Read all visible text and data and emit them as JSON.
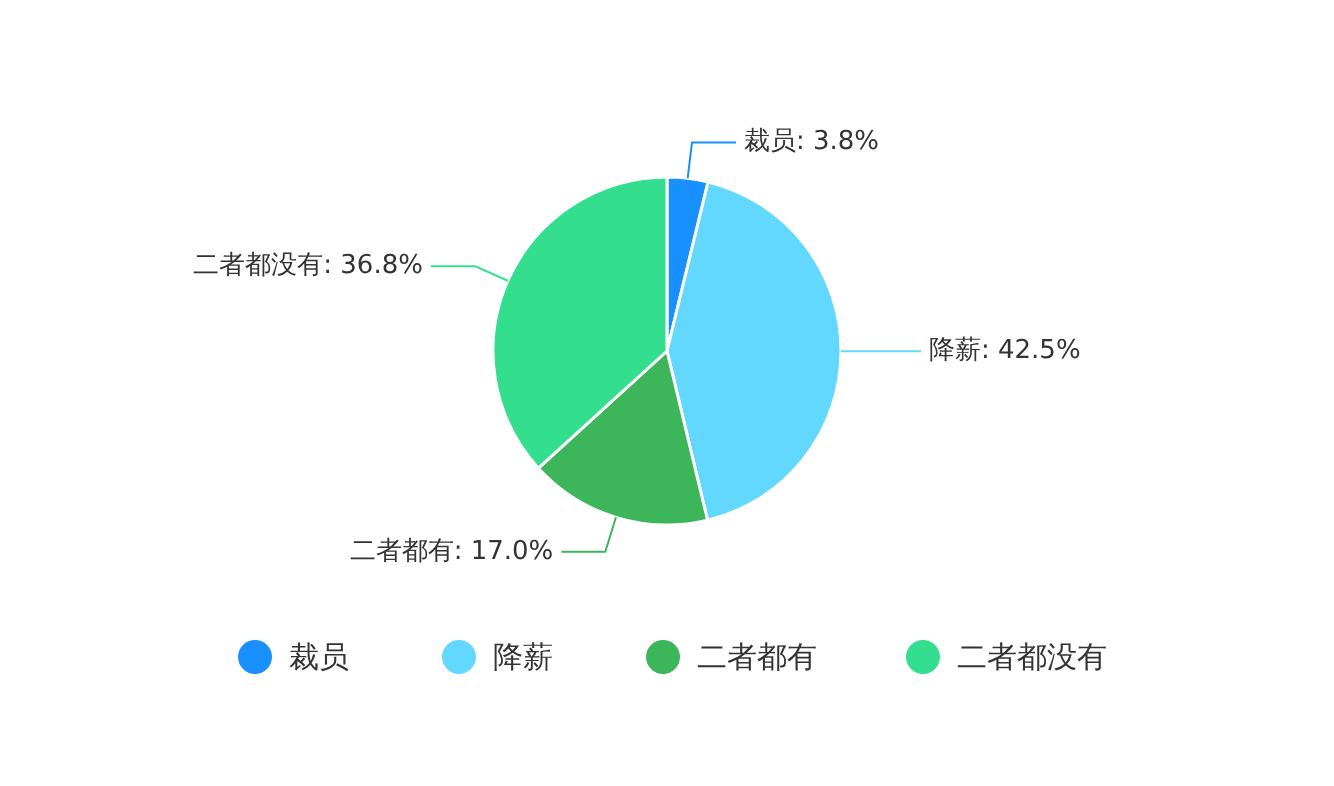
{
  "chart_data": {
    "type": "pie",
    "categories": [
      "裁员",
      "降薪",
      "二者都有",
      "二者都没有"
    ],
    "values": [
      3.8,
      42.5,
      17.0,
      36.8
    ],
    "value_labels": [
      "裁员: 3.8%",
      "降薪: 42.5%",
      "二者都有: 17.0%",
      "二者都没有: 36.8%"
    ],
    "colors": [
      "#1890ff",
      "#62d8fe",
      "#3db55a",
      "#33df8f"
    ],
    "legend": "bottom"
  }
}
